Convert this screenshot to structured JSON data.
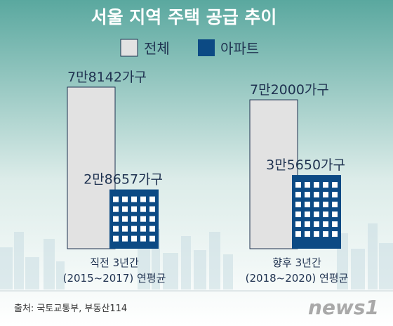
{
  "chart_data": {
    "type": "bar",
    "title": "서울 지역 주택 공급 추이",
    "categories": [
      {
        "line1": "직전 3년간",
        "line2": "(2015~2017) 연평균"
      },
      {
        "line1": "향후 3년간",
        "line2": "(2018~2020) 연평균"
      }
    ],
    "series": [
      {
        "name": "전체",
        "values": [
          78142,
          72000
        ],
        "labels": [
          "7만8142가구",
          "7만2000가구"
        ],
        "color": "#e2e2e2"
      },
      {
        "name": "아파트",
        "values": [
          28657,
          35650
        ],
        "labels": [
          "2만8657가구",
          "3만5650가구"
        ],
        "color": "#0c4a84"
      }
    ],
    "ylim": [
      0,
      78142
    ],
    "legend_position": "top-center",
    "grid": false
  },
  "footer": {
    "source": "출처: 국토교통부, 부동산114",
    "brand": "news1"
  },
  "colors": {
    "background_top": "#5aa89f",
    "background_bottom": "#ffffff",
    "text": "#1f3250",
    "bar_outline": "#1f3250"
  }
}
